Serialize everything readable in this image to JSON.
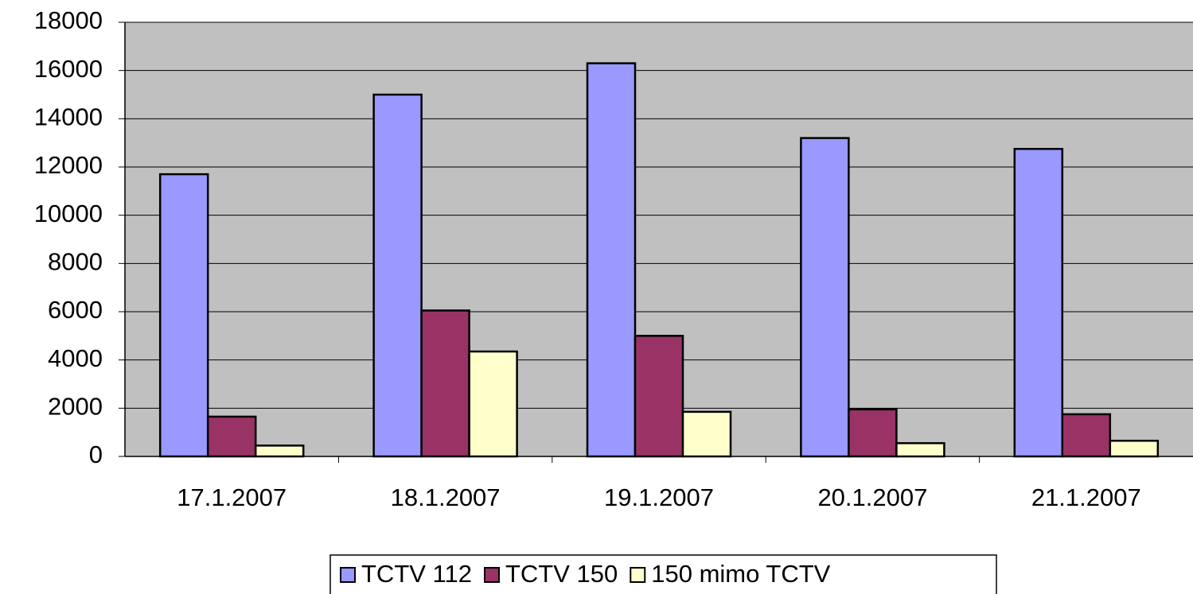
{
  "chart_data": {
    "type": "bar",
    "categories": [
      "17.1.2007",
      "18.1.2007",
      "19.1.2007",
      "20.1.2007",
      "21.1.2007"
    ],
    "series": [
      {
        "name": "TCTV 112",
        "color": "#9999ff",
        "values": [
          11700,
          15000,
          16300,
          13200,
          12750
        ]
      },
      {
        "name": "TCTV 150",
        "color": "#993366",
        "values": [
          1650,
          6050,
          5000,
          1950,
          1750
        ]
      },
      {
        "name": "150 mimo TCTV",
        "color": "#ffffcc",
        "values": [
          450,
          4350,
          1850,
          550,
          650
        ]
      }
    ],
    "ylim": [
      0,
      18000
    ],
    "yticks": [
      0,
      2000,
      4000,
      6000,
      8000,
      10000,
      12000,
      14000,
      16000,
      18000
    ],
    "grid": true,
    "legend": "bottom"
  }
}
